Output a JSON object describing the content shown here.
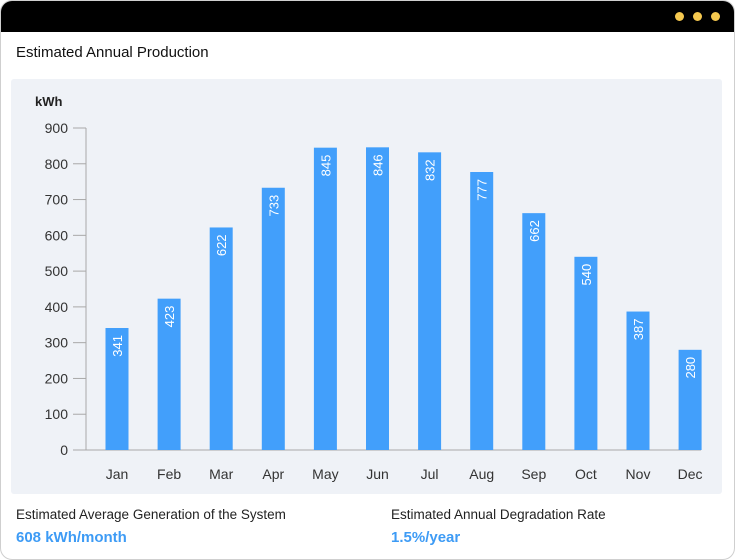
{
  "window": {
    "titlebar_dots": [
      "dot",
      "dot",
      "dot"
    ],
    "dot_color": "#f5c84f"
  },
  "header": {
    "title": "Estimated Annual Production"
  },
  "chart_data": {
    "type": "bar",
    "title": "Estimated Annual Production",
    "ylabel": "kWh",
    "xlabel": "",
    "categories": [
      "Jan",
      "Feb",
      "Mar",
      "Apr",
      "May",
      "Jun",
      "Jul",
      "Aug",
      "Sep",
      "Oct",
      "Nov",
      "Dec"
    ],
    "values": [
      341,
      423,
      622,
      733,
      845,
      846,
      832,
      777,
      662,
      540,
      387,
      280
    ],
    "yticks": [
      0,
      100,
      200,
      300,
      400,
      500,
      600,
      700,
      800,
      900
    ],
    "ylim": [
      0,
      900
    ],
    "grid": false,
    "data_labels": true,
    "data_label_orientation": "vertical",
    "bar_color": "#429ffb",
    "background_color": "#eff2f7"
  },
  "stats": [
    {
      "label": "Estimated Average Generation of the System",
      "value": "608 kWh/month"
    },
    {
      "label": "Estimated Annual Degradation Rate",
      "value": "1.5%/year"
    }
  ],
  "colors": {
    "accent": "#3d9bf5",
    "titlebar": "#000000"
  }
}
